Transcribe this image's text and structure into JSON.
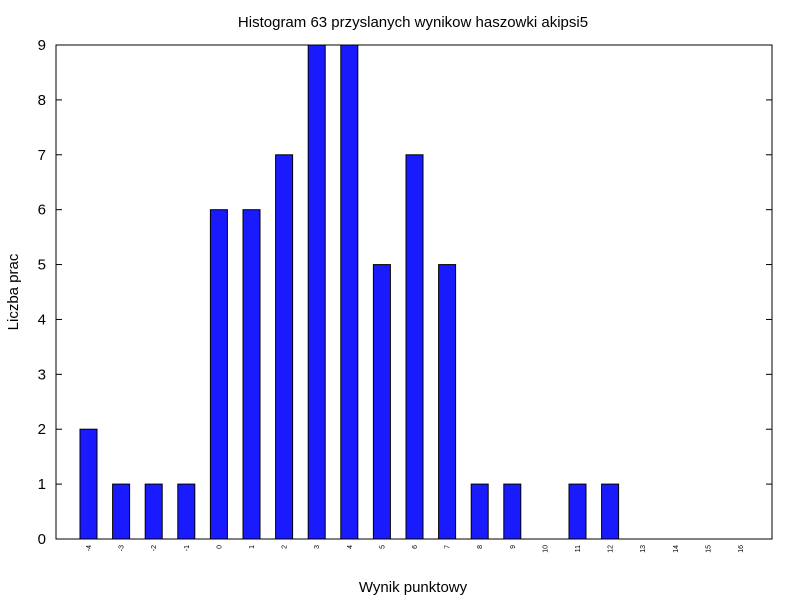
{
  "chart_data": {
    "type": "bar",
    "title": "Histogram 63 przyslanych wynikow haszowki akipsi5",
    "xlabel": "Wynik punktowy",
    "ylabel": "Liczba prac",
    "categories": [
      "-4",
      "-3",
      "-2",
      "-1",
      "0",
      "1",
      "2",
      "3",
      "4",
      "5",
      "6",
      "7",
      "8",
      "9",
      "10",
      "11",
      "12",
      "13",
      "14",
      "15",
      "16"
    ],
    "values": [
      2,
      1,
      1,
      1,
      6,
      6,
      7,
      9,
      9,
      5,
      7,
      5,
      1,
      1,
      0,
      1,
      1,
      0,
      0,
      0,
      0
    ],
    "ylim": [
      0,
      9
    ],
    "yticks": [
      "0",
      "1",
      "2",
      "3",
      "4",
      "5",
      "6",
      "7",
      "8",
      "9"
    ],
    "grid": false,
    "bar_color": "#1a1aff",
    "bar_edge_color": "#000000"
  }
}
